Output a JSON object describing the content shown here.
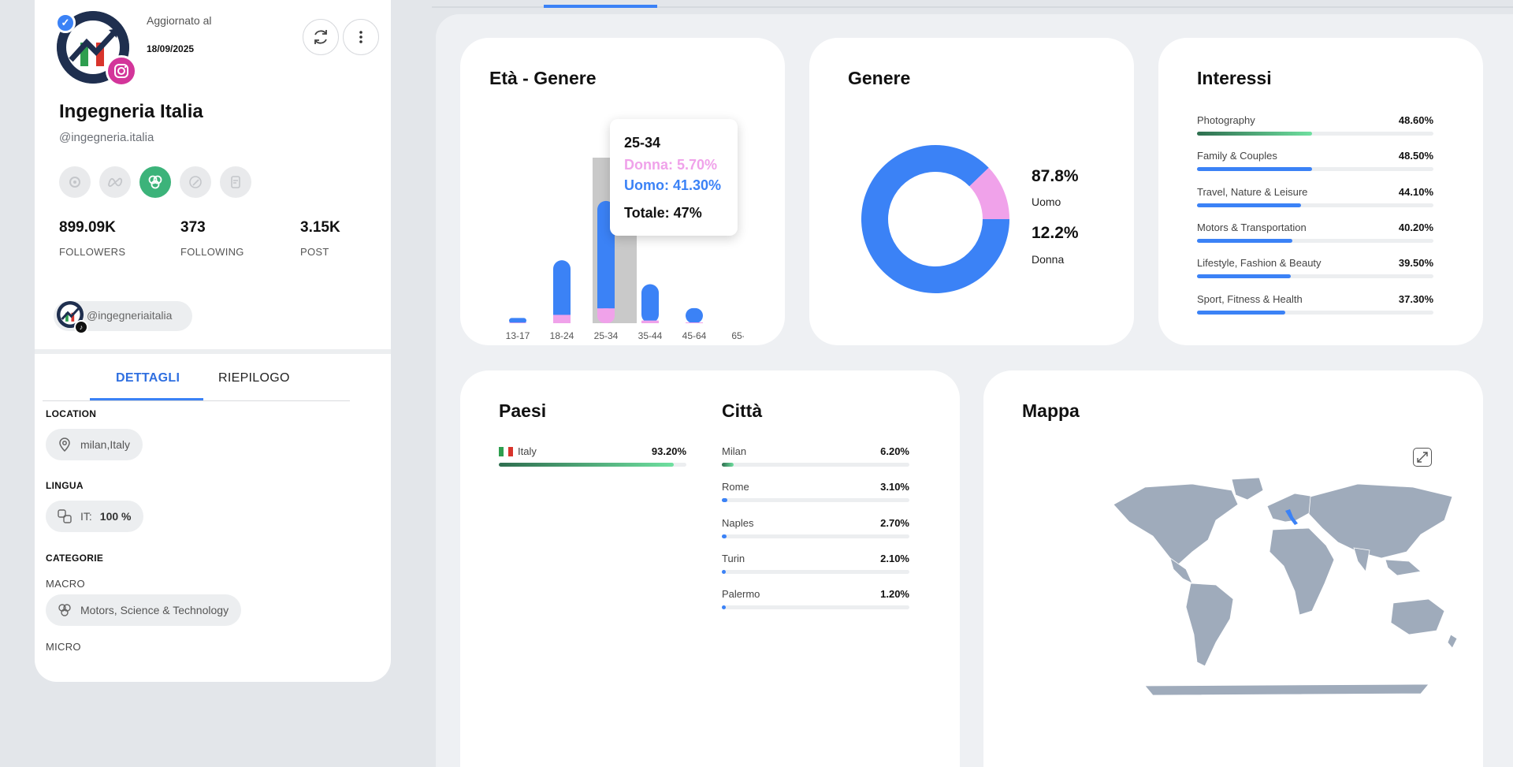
{
  "profile": {
    "updated_label": "Aggiornato al",
    "updated_date": "18/09/2025",
    "name": "Ingegneria Italia",
    "handle": "@ingegneria.italia",
    "stats": [
      {
        "value": "899.09K",
        "label": "FOLLOWERS"
      },
      {
        "value": "373",
        "label": "FOLLOWING"
      },
      {
        "value": "3.15K",
        "label": "POST"
      }
    ],
    "linked_handle": "@ingegneriaitalia",
    "tabs": {
      "details": "DETTAGLI",
      "summary": "RIEPILOGO"
    },
    "location_label": "LOCATION",
    "location_value": "milan,Italy",
    "language_label": "LINGUA",
    "language_code": "IT:",
    "language_value": "100 %",
    "categories_label": "CATEGORIE",
    "macro_label": "MACRO",
    "macro_value": "Motors, Science & Technology",
    "micro_label": "MICRO"
  },
  "age_gender": {
    "title": "Età - Genere",
    "colors": {
      "uomo": "#3b82f6",
      "donna": "#f0a2ea"
    },
    "tooltip": {
      "title": "25-34",
      "donna": "Donna: 5.70%",
      "uomo": "Uomo: 41.30%",
      "totale": "Totale: 47%"
    }
  },
  "gender": {
    "title": "Genere",
    "items": [
      {
        "value": "87.8%",
        "label": "Uomo"
      },
      {
        "value": "12.2%",
        "label": "Donna"
      }
    ]
  },
  "interests": {
    "title": "Interessi",
    "items": [
      {
        "label": "Photography",
        "value": "48.60%",
        "pct": 48.6,
        "style": "green"
      },
      {
        "label": "Family & Couples",
        "value": "48.50%",
        "pct": 48.5,
        "style": "blue"
      },
      {
        "label": "Travel, Nature & Leisure",
        "value": "44.10%",
        "pct": 44.1,
        "style": "blue"
      },
      {
        "label": "Motors & Transportation",
        "value": "40.20%",
        "pct": 40.2,
        "style": "blue"
      },
      {
        "label": "Lifestyle, Fashion & Beauty",
        "value": "39.50%",
        "pct": 39.5,
        "style": "blue"
      },
      {
        "label": "Sport, Fitness & Health",
        "value": "37.30%",
        "pct": 37.3,
        "style": "blue"
      }
    ]
  },
  "countries": {
    "title": "Paesi",
    "items": [
      {
        "label": "Italy",
        "value": "93.20%",
        "pct": 93.2,
        "style": "green"
      }
    ]
  },
  "cities": {
    "title": "Città",
    "items": [
      {
        "label": "Milan",
        "value": "6.20%",
        "pct": 6.2,
        "style": "green"
      },
      {
        "label": "Rome",
        "value": "3.10%",
        "pct": 3.1,
        "style": "blue"
      },
      {
        "label": "Naples",
        "value": "2.70%",
        "pct": 2.7,
        "style": "blue"
      },
      {
        "label": "Turin",
        "value": "2.10%",
        "pct": 2.1,
        "style": "blue"
      },
      {
        "label": "Palermo",
        "value": "1.20%",
        "pct": 1.2,
        "style": "blue"
      }
    ]
  },
  "map": {
    "title": "Mappa",
    "land_color": "#9fabbb",
    "highlight_color": "#3b82f6"
  },
  "chart_data": [
    {
      "type": "bar",
      "title": "Età - Genere",
      "categories": [
        "13-17",
        "18-24",
        "25-34",
        "35-44",
        "45-64",
        "65-"
      ],
      "series": [
        {
          "name": "Uomo",
          "values": [
            1.8,
            21.0,
            41.3,
            14.0,
            5.5,
            0
          ]
        },
        {
          "name": "Donna",
          "values": [
            0.2,
            3.2,
            5.7,
            1.0,
            0.3,
            0
          ]
        }
      ],
      "stacked": true,
      "highlighted_category": "25-34"
    },
    {
      "type": "pie",
      "title": "Genere",
      "categories": [
        "Uomo",
        "Donna"
      ],
      "values": [
        87.8,
        12.2
      ],
      "donut": true
    },
    {
      "type": "bar",
      "orientation": "horizontal",
      "title": "Interessi",
      "categories": [
        "Photography",
        "Family & Couples",
        "Travel, Nature & Leisure",
        "Motors & Transportation",
        "Lifestyle, Fashion & Beauty",
        "Sport, Fitness & Health"
      ],
      "values": [
        48.6,
        48.5,
        44.1,
        40.2,
        39.5,
        37.3
      ]
    },
    {
      "type": "bar",
      "orientation": "horizontal",
      "title": "Paesi",
      "categories": [
        "Italy"
      ],
      "values": [
        93.2
      ]
    },
    {
      "type": "bar",
      "orientation": "horizontal",
      "title": "Città",
      "categories": [
        "Milan",
        "Rome",
        "Naples",
        "Turin",
        "Palermo"
      ],
      "values": [
        6.2,
        3.1,
        2.7,
        2.1,
        1.2
      ]
    }
  ]
}
